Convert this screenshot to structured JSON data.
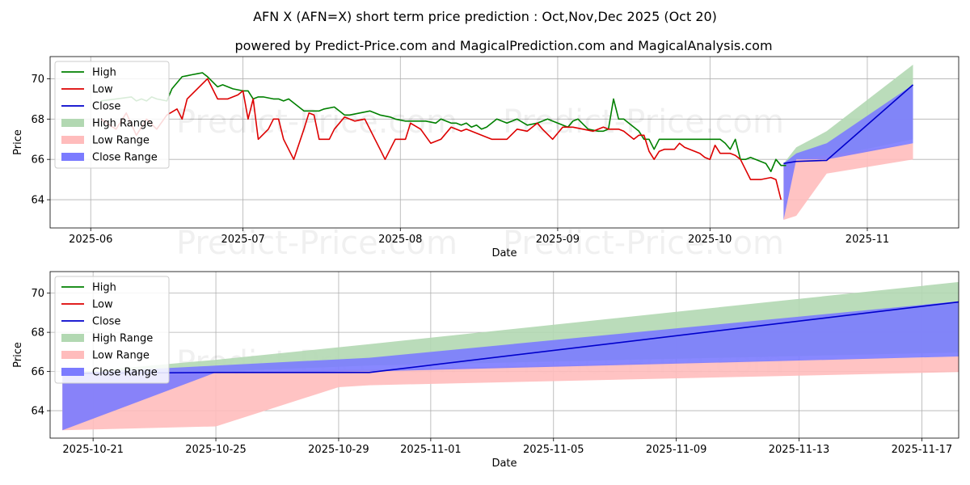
{
  "title": "AFN X (AFN=X) short term price prediction : Oct,Nov,Dec 2025 (Oct 20)",
  "subtitle": "powered by Predict-Price.com and MagicalPrediction.com and MagicalAnalysis.com",
  "watermark": "Predict-Price.com",
  "colors": {
    "high": "#008000",
    "low": "#dd0000",
    "close": "#0000cc",
    "high_range": "#b2d8b2",
    "low_range": "#ffbcbc",
    "close_range": "#7b7bff",
    "grid": "#b0b0b0"
  },
  "chart_data": [
    {
      "type": "line",
      "name": "history",
      "xlabel": "Date",
      "ylabel": "Price",
      "xlim": [
        -8,
        171
      ],
      "ylim": [
        62.6,
        71.1
      ],
      "x_ticks": [
        {
          "pos": 0,
          "label": "2025-06"
        },
        {
          "pos": 30,
          "label": "2025-07"
        },
        {
          "pos": 61,
          "label": "2025-08"
        },
        {
          "pos": 92,
          "label": "2025-09"
        },
        {
          "pos": 122,
          "label": "2025-10"
        },
        {
          "pos": 153,
          "label": "2025-11"
        }
      ],
      "y_ticks": [
        64,
        66,
        68,
        70
      ],
      "legend": [
        "High",
        "Low",
        "Close",
        "High Range",
        "Low Range",
        "Close Range"
      ],
      "series": [
        {
          "name": "High",
          "x": [
            2,
            5,
            8,
            9,
            10,
            11,
            12,
            13,
            15,
            16,
            17,
            18,
            19,
            20,
            21,
            22,
            23,
            25,
            26,
            27,
            28,
            30,
            31,
            32,
            33,
            34,
            35,
            36,
            37,
            38,
            39,
            42,
            44,
            45,
            46,
            48,
            50,
            51,
            53,
            55,
            57,
            59,
            60,
            62,
            64,
            66,
            68,
            69,
            70,
            71,
            72,
            73,
            74,
            75,
            76,
            77,
            78,
            80,
            82,
            84,
            86,
            88,
            90,
            92,
            94,
            95,
            96,
            98,
            100,
            101,
            102,
            103,
            104,
            105,
            106,
            107,
            108,
            109,
            110,
            111,
            112,
            114,
            116,
            118,
            120,
            122,
            123,
            124,
            125,
            126,
            127,
            128,
            129,
            130,
            131,
            132,
            133,
            134,
            135,
            136,
            137
          ],
          "values": [
            68.9,
            69.0,
            69.1,
            68.9,
            69.0,
            68.9,
            69.1,
            69.0,
            68.9,
            69.5,
            69.8,
            70.1,
            70.15,
            70.2,
            70.25,
            70.3,
            70.1,
            69.6,
            69.7,
            69.6,
            69.5,
            69.4,
            69.4,
            69.0,
            69.1,
            69.1,
            69.05,
            69.0,
            69.0,
            68.9,
            69.0,
            68.4,
            68.4,
            68.4,
            68.5,
            68.6,
            68.2,
            68.2,
            68.3,
            68.4,
            68.2,
            68.1,
            68.0,
            67.9,
            67.9,
            67.9,
            67.8,
            68.0,
            67.9,
            67.8,
            67.8,
            67.7,
            67.8,
            67.6,
            67.7,
            67.5,
            67.6,
            68.0,
            67.8,
            68.0,
            67.7,
            67.8,
            68.0,
            67.8,
            67.6,
            67.9,
            68.0,
            67.5,
            67.4,
            67.4,
            67.5,
            69.0,
            68.0,
            68.0,
            67.8,
            67.6,
            67.4,
            67.0,
            67.0,
            66.5,
            67.0,
            67.0,
            67.0,
            67.0,
            67.0,
            67.0,
            67.0,
            67.0,
            66.8,
            66.5,
            67.0,
            66.0,
            66.0,
            66.1,
            66.0,
            65.9,
            65.8,
            65.4,
            66.0,
            65.7,
            65.7
          ]
        },
        {
          "name": "Low",
          "x": [
            2,
            5,
            7,
            9,
            11,
            13,
            15,
            17,
            18,
            19,
            21,
            23,
            25,
            27,
            29,
            30,
            31,
            32,
            33,
            35,
            36,
            37,
            38,
            40,
            42,
            43,
            44,
            45,
            47,
            48,
            49,
            50,
            52,
            54,
            56,
            57,
            58,
            60,
            62,
            63,
            65,
            67,
            69,
            71,
            73,
            74,
            75,
            77,
            79,
            80,
            82,
            84,
            86,
            88,
            89,
            91,
            93,
            95,
            97,
            99,
            101,
            102,
            103,
            104,
            105,
            106,
            107,
            108,
            109,
            110,
            111,
            112,
            113,
            115,
            116,
            117,
            118,
            120,
            121,
            122,
            123,
            124,
            125,
            126,
            127,
            128,
            130,
            131,
            132,
            133,
            134,
            135,
            136
          ],
          "values": [
            68.0,
            67.5,
            68.3,
            67.2,
            68.0,
            67.5,
            68.2,
            68.5,
            68.0,
            69.0,
            69.5,
            70.0,
            69.0,
            69.0,
            69.2,
            69.4,
            68.0,
            69.0,
            67.0,
            67.5,
            68.0,
            68.0,
            67.0,
            66.0,
            67.5,
            68.3,
            68.2,
            67.0,
            67.0,
            67.5,
            67.8,
            68.1,
            67.9,
            68.0,
            67.0,
            66.5,
            66.0,
            67.0,
            67.0,
            67.8,
            67.5,
            66.8,
            67.0,
            67.6,
            67.4,
            67.5,
            67.4,
            67.2,
            67.0,
            67.0,
            67.0,
            67.5,
            67.4,
            67.8,
            67.5,
            67.0,
            67.6,
            67.6,
            67.5,
            67.4,
            67.6,
            67.5,
            67.5,
            67.5,
            67.4,
            67.2,
            67.0,
            67.2,
            67.2,
            66.4,
            66.0,
            66.4,
            66.5,
            66.5,
            66.8,
            66.6,
            66.5,
            66.3,
            66.1,
            66.0,
            66.7,
            66.3,
            66.3,
            66.3,
            66.2,
            66.0,
            65.0,
            65.0,
            65.0,
            65.05,
            65.1,
            65.0,
            64.0
          ]
        },
        {
          "name": "Close",
          "x": [
            136.5,
            139,
            145,
            162
          ],
          "values": [
            65.8,
            65.9,
            65.95,
            69.7
          ]
        },
        {
          "name": "High Range",
          "x": [
            136.5,
            139,
            145,
            162
          ],
          "upper": [
            65.8,
            66.6,
            67.4,
            70.7
          ],
          "lower": [
            65.8,
            66.0,
            66.1,
            67.0
          ]
        },
        {
          "name": "Low Range",
          "x": [
            136.5,
            139,
            145,
            162
          ],
          "upper": [
            65.8,
            66.0,
            66.2,
            66.8
          ],
          "lower": [
            63.0,
            63.2,
            65.3,
            66.0
          ]
        },
        {
          "name": "Close Range",
          "x": [
            136.5,
            139,
            145,
            162
          ],
          "upper": [
            65.8,
            66.3,
            66.8,
            69.7
          ],
          "lower": [
            63.0,
            66.0,
            66.0,
            66.8
          ]
        }
      ]
    },
    {
      "type": "line",
      "name": "prediction",
      "xlabel": "Date",
      "ylabel": "Price",
      "xlim": [
        -0.4,
        29.2
      ],
      "ylim": [
        62.6,
        71.1
      ],
      "x_ticks": [
        {
          "pos": 1,
          "label": "2025-10-21"
        },
        {
          "pos": 5,
          "label": "2025-10-25"
        },
        {
          "pos": 9,
          "label": "2025-10-29"
        },
        {
          "pos": 12,
          "label": "2025-11-01"
        },
        {
          "pos": 16,
          "label": "2025-11-05"
        },
        {
          "pos": 20,
          "label": "2025-11-09"
        },
        {
          "pos": 24,
          "label": "2025-11-13"
        },
        {
          "pos": 28,
          "label": "2025-11-17"
        }
      ],
      "y_ticks": [
        64,
        66,
        68,
        70
      ],
      "legend": [
        "High",
        "Low",
        "Close",
        "High Range",
        "Low Range",
        "Close Range"
      ],
      "series": [
        {
          "name": "Close",
          "x": [
            0,
            5,
            10,
            30
          ],
          "values": [
            65.9,
            65.95,
            65.95,
            69.7
          ]
        },
        {
          "name": "High Range",
          "x": [
            0,
            5,
            10,
            30
          ],
          "upper": [
            65.9,
            66.6,
            67.4,
            70.7
          ],
          "lower": [
            65.9,
            66.0,
            66.3,
            67.0
          ]
        },
        {
          "name": "Low Range",
          "x": [
            0,
            5,
            9,
            10,
            30
          ],
          "upper": [
            65.9,
            65.95,
            66.1,
            66.1,
            66.8
          ],
          "lower": [
            63.0,
            63.2,
            65.2,
            65.3,
            66.0
          ]
        },
        {
          "name": "Close Range",
          "x": [
            0,
            5,
            10,
            30
          ],
          "upper": [
            65.9,
            66.3,
            66.7,
            69.7
          ],
          "lower": [
            63.0,
            65.95,
            66.0,
            66.8
          ]
        }
      ]
    }
  ]
}
